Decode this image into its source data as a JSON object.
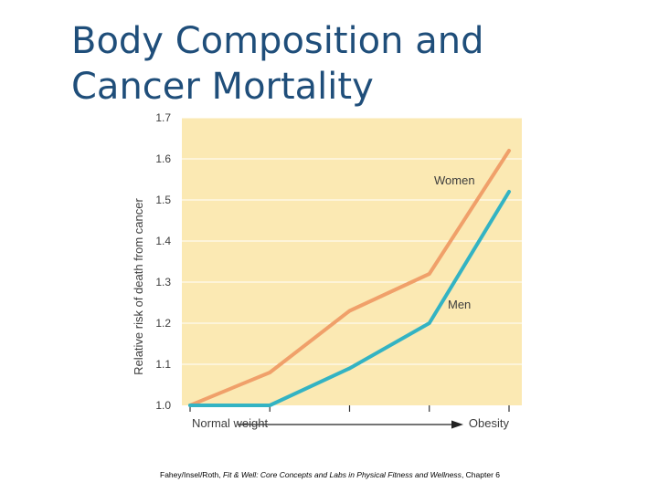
{
  "slide": {
    "title_line1": "Body Composition and",
    "title_line2": "Cancer Mortality"
  },
  "caption": {
    "prefix": "Fahey/Insel/Roth, ",
    "italic": "Fit & Well: Core Concepts and Labs in Physical Fitness and Wellness",
    "suffix": ", Chapter 6"
  },
  "colors": {
    "plot_background": "#fbe9b3",
    "women_line": "#f0a06a",
    "men_line": "#33b3c3",
    "axis_text": "#3d3d3d",
    "title": "#1f4e7a"
  },
  "chart_data": {
    "type": "line",
    "title": "",
    "ylabel": "Relative risk of death from cancer",
    "xlabel": "",
    "ylim": [
      1.0,
      1.7
    ],
    "yticks": [
      "1.0",
      "1.1",
      "1.2",
      "1.3",
      "1.4",
      "1.5",
      "1.6",
      "1.7"
    ],
    "x_categories": [
      0,
      1,
      2,
      3,
      4
    ],
    "x_start_label": "Normal weight",
    "x_end_label": "Obesity",
    "series": [
      {
        "name": "Women",
        "values": [
          1.0,
          1.08,
          1.23,
          1.32,
          1.62
        ]
      },
      {
        "name": "Men",
        "values": [
          1.0,
          1.0,
          1.09,
          1.2,
          1.52
        ]
      }
    ]
  }
}
